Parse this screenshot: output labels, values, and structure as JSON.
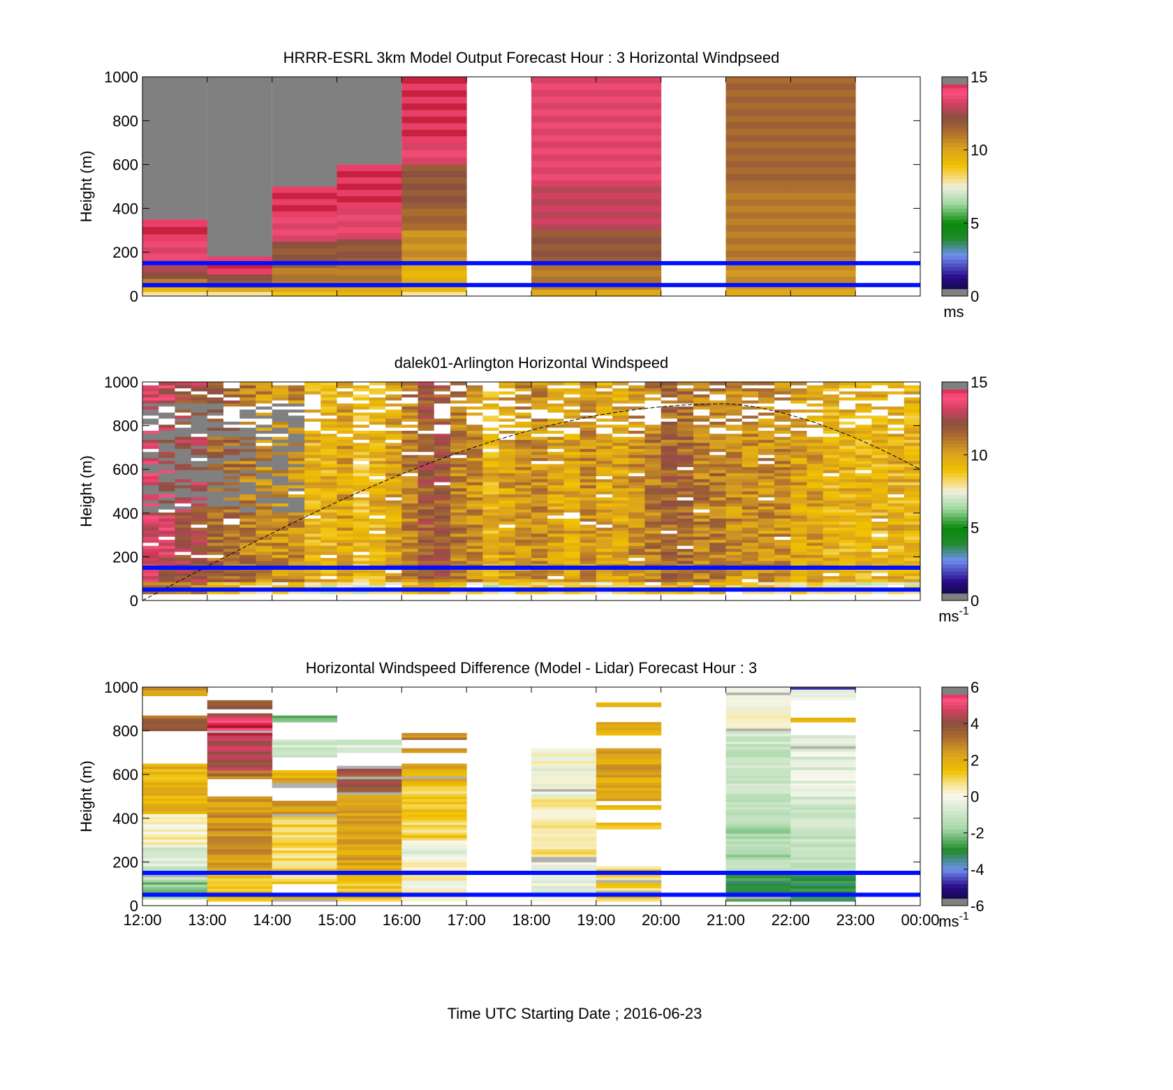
{
  "figure": {
    "xlabel": "Time UTC  Starting Date ; 2016-06-23",
    "x_tick_labels": [
      "12:00",
      "13:00",
      "14:00",
      "15:00",
      "16:00",
      "17:00",
      "18:00",
      "19:00",
      "20:00",
      "21:00",
      "22:00",
      "23:00",
      "00:00"
    ]
  },
  "chart_data": [
    {
      "type": "heatmap",
      "title": "HRRR-ESRL 3km Model Output   Forecast Hour : 3 Horizontal Windpseed",
      "ylabel": "Height (m)",
      "ylim": [
        0,
        1000
      ],
      "y_tick_labels": [
        "0",
        "200",
        "400",
        "600",
        "800",
        "1000"
      ],
      "colorbar": {
        "range": [
          0,
          15
        ],
        "ticks": [
          "0",
          "5",
          "10",
          "15"
        ],
        "unit": "ms"
      },
      "reference_lines_m": [
        50,
        150
      ],
      "columns": [
        {
          "time": "12:00",
          "top_m": 350,
          "profile": [
            [
              0,
              20,
              8
            ],
            [
              20,
              40,
              9.5
            ],
            [
              40,
              80,
              11
            ],
            [
              80,
              140,
              12.5
            ],
            [
              140,
              250,
              13.5
            ],
            [
              250,
              350,
              14.5
            ]
          ]
        },
        {
          "time": "13:00",
          "top_m": 180,
          "profile": [
            [
              0,
              20,
              8
            ],
            [
              20,
              40,
              10
            ],
            [
              40,
              100,
              12
            ],
            [
              100,
              180,
              14.5
            ]
          ],
          "above": "grey"
        },
        {
          "time": "14:00",
          "top_m": 500,
          "profile": [
            [
              0,
              20,
              9
            ],
            [
              20,
              40,
              10
            ],
            [
              40,
              130,
              11
            ],
            [
              130,
              250,
              12
            ],
            [
              250,
              360,
              13.5
            ],
            [
              360,
              500,
              14.5
            ]
          ]
        },
        {
          "time": "15:00",
          "top_m": 600,
          "profile": [
            [
              0,
              20,
              9.5
            ],
            [
              20,
              40,
              10
            ],
            [
              40,
              150,
              11
            ],
            [
              150,
              260,
              12
            ],
            [
              260,
              400,
              13.5
            ],
            [
              400,
              600,
              14.5
            ]
          ]
        },
        {
          "time": "16:00",
          "top_m": 1000,
          "profile": [
            [
              0,
              20,
              8
            ],
            [
              20,
              150,
              9.5
            ],
            [
              150,
              300,
              10.5
            ],
            [
              300,
              400,
              11.5
            ],
            [
              400,
              600,
              12
            ],
            [
              600,
              700,
              13.5
            ],
            [
              700,
              1000,
              14.5
            ]
          ]
        },
        {
          "time": "17:00",
          "top_m": 0,
          "profile": []
        },
        {
          "time": "18:00",
          "top_m": 1000,
          "profile": [
            [
              0,
              30,
              10
            ],
            [
              30,
              150,
              11
            ],
            [
              150,
              300,
              12
            ],
            [
              300,
              500,
              13
            ],
            [
              500,
              1000,
              13.5
            ]
          ]
        },
        {
          "time": "19:00",
          "top_m": 1000,
          "profile": [
            [
              0,
              30,
              10
            ],
            [
              30,
              150,
              11
            ],
            [
              150,
              300,
              12
            ],
            [
              300,
              500,
              13
            ],
            [
              500,
              1000,
              13.5
            ]
          ]
        },
        {
          "time": "20:00",
          "top_m": 0,
          "profile": []
        },
        {
          "time": "21:00",
          "top_m": 1000,
          "profile": [
            [
              0,
              30,
              10
            ],
            [
              30,
              150,
              10.5
            ],
            [
              150,
              500,
              11
            ],
            [
              500,
              1000,
              11.5
            ]
          ]
        },
        {
          "time": "22:00",
          "top_m": 1000,
          "profile": [
            [
              0,
              30,
              10
            ],
            [
              30,
              150,
              10.5
            ],
            [
              150,
              500,
              11
            ],
            [
              500,
              1000,
              11.5
            ]
          ]
        },
        {
          "time": "23:00",
          "top_m": 0,
          "profile": []
        }
      ]
    },
    {
      "type": "heatmap",
      "title": "dalek01-Arlington  Horizontal Windspeed",
      "ylabel": "Height (m)",
      "ylim": [
        0,
        1000
      ],
      "y_tick_labels": [
        "0",
        "200",
        "400",
        "600",
        "800",
        "1000"
      ],
      "colorbar": {
        "range": [
          0,
          15
        ],
        "ticks": [
          "0",
          "5",
          "10",
          "15"
        ],
        "unit": "ms",
        "unit_exp": "-1"
      },
      "reference_lines_m": [
        50,
        150
      ],
      "boundary_layer_curve": {
        "start_m": 0,
        "peak_m": 900,
        "peak_time_hours_from_start": 9,
        "end_m": 600
      },
      "column_means_ms": [
        13.5,
        13,
        12.5,
        12.5,
        11.5,
        11.5,
        11,
        10.5,
        10.5,
        10.5,
        9.5,
        9.5,
        10,
        9,
        9.5,
        10,
        11,
        12,
        12,
        11,
        10.5,
        9.5,
        10,
        10.5,
        10.5,
        10,
        10,
        10.5,
        10,
        10,
        10.5,
        11,
        11.5,
        11.5,
        11,
        11,
        10.5,
        10.5,
        10.5,
        10.5,
        10,
        10,
        9.5,
        9.5,
        9.5,
        9.5,
        9.5,
        9.5
      ]
    },
    {
      "type": "heatmap",
      "title": "Horizontal Windspeed Difference (Model - Lidar) Forecast Hour : 3",
      "ylabel": "Height (m)",
      "ylim": [
        0,
        1000
      ],
      "y_tick_labels": [
        "0",
        "200",
        "400",
        "600",
        "800",
        "1000"
      ],
      "colorbar": {
        "range": [
          -6,
          6
        ],
        "ticks": [
          "-6",
          "-4",
          "-2",
          "0",
          "2",
          "4",
          "6"
        ],
        "unit": "ms",
        "unit_exp": "-1"
      },
      "reference_lines_m": [
        50,
        150
      ],
      "columns": [
        {
          "time": "12:00",
          "segments": [
            [
              30,
              120,
              -2
            ],
            [
              120,
              280,
              -0.8
            ],
            [
              280,
              420,
              0.3
            ],
            [
              420,
              650,
              1.8
            ],
            [
              800,
              870,
              3.5
            ],
            [
              960,
              1000,
              2.5
            ]
          ]
        },
        {
          "time": "13:00",
          "segments": [
            [
              20,
              150,
              1.5
            ],
            [
              150,
              500,
              2.5
            ],
            [
              580,
              620,
              3
            ],
            [
              620,
              780,
              4.3
            ],
            [
              780,
              860,
              5.8
            ],
            [
              860,
              880,
              4.5
            ],
            [
              900,
              940,
              4.2
            ]
          ]
        },
        {
          "time": "14:00",
          "segments": [
            [
              20,
              50,
              1.5
            ],
            [
              100,
              420,
              1
            ],
            [
              420,
              480,
              2.5
            ],
            [
              540,
              620,
              2
            ],
            [
              680,
              760,
              -0.8
            ],
            [
              840,
              870,
              -2.5
            ]
          ]
        },
        {
          "time": "15:00",
          "segments": [
            [
              20,
              150,
              1.5
            ],
            [
              150,
              520,
              2.2
            ],
            [
              520,
              640,
              4
            ],
            [
              700,
              760,
              -0.8
            ]
          ]
        },
        {
          "time": "16:00",
          "segments": [
            [
              20,
              200,
              0.3
            ],
            [
              200,
              300,
              -0.3
            ],
            [
              300,
              560,
              1.2
            ],
            [
              560,
              650,
              2
            ],
            [
              700,
              720,
              3
            ],
            [
              760,
              790,
              3
            ]
          ]
        },
        {
          "time": "18:00",
          "segments": [
            [
              20,
              200,
              -0.3
            ],
            [
              200,
              500,
              0.6
            ],
            [
              500,
              640,
              -0.2
            ],
            [
              640,
              720,
              0.1
            ]
          ]
        },
        {
          "time": "19:00",
          "segments": [
            [
              20,
              180,
              1
            ],
            [
              350,
              380,
              1.5
            ],
            [
              440,
              460,
              1.5
            ],
            [
              480,
              720,
              2.2
            ],
            [
              780,
              840,
              2
            ],
            [
              910,
              930,
              1.5
            ]
          ]
        },
        {
          "time": "21:00",
          "segments": [
            [
              20,
              150,
              -3
            ],
            [
              150,
              500,
              -1.5
            ],
            [
              500,
              800,
              -1
            ],
            [
              800,
              1000,
              0
            ]
          ]
        },
        {
          "time": "22:00",
          "segments": [
            [
              20,
              150,
              -3
            ],
            [
              150,
              500,
              -1
            ],
            [
              500,
              780,
              -0.5
            ],
            [
              840,
              860,
              1.5
            ],
            [
              940,
              990,
              -0.5
            ],
            [
              990,
              1000,
              -5
            ]
          ]
        }
      ]
    }
  ]
}
